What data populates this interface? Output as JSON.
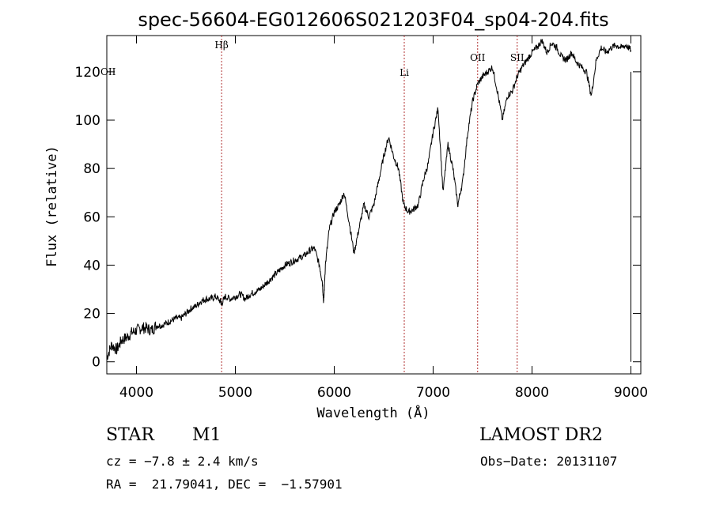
{
  "chart_data": {
    "type": "line",
    "title": "spec-56604-EG012606S021203F04_sp04-204.fits",
    "xlabel": "Wavelength (Å)",
    "ylabel": "Flux (relative)",
    "xlim": [
      3700,
      9100
    ],
    "ylim": [
      -5,
      135
    ],
    "x_ticks": [
      4000,
      5000,
      6000,
      7000,
      8000,
      9000
    ],
    "y_ticks": [
      0,
      20,
      40,
      60,
      80,
      100,
      120
    ],
    "grid": false,
    "series": [
      {
        "x": [
          3700,
          3750,
          3800,
          3850,
          3900,
          3950,
          4000,
          4050,
          4100,
          4150,
          4200,
          4250,
          4300,
          4350,
          4400,
          4450,
          4500,
          4550,
          4600,
          4650,
          4700,
          4750,
          4800,
          4850,
          4861,
          4900,
          4950,
          5000,
          5050,
          5100,
          5150,
          5200,
          5250,
          5300,
          5350,
          5400,
          5450,
          5500,
          5550,
          5600,
          5650,
          5700,
          5750,
          5800,
          5850,
          5880,
          5893,
          5910,
          5950,
          6000,
          6050,
          6100,
          6150,
          6200,
          6250,
          6300,
          6350,
          6400,
          6450,
          6500,
          6550,
          6600,
          6650,
          6700,
          6750,
          6800,
          6850,
          6900,
          6950,
          7000,
          7050,
          7100,
          7150,
          7200,
          7250,
          7300,
          7350,
          7400,
          7450,
          7500,
          7550,
          7600,
          7650,
          7700,
          7750,
          7800,
          7850,
          7900,
          7950,
          8000,
          8050,
          8100,
          8150,
          8200,
          8250,
          8300,
          8350,
          8400,
          8450,
          8500,
          8550,
          8600,
          8650,
          8700,
          8750,
          8800,
          8850,
          8900,
          8950,
          9000
        ],
        "y": [
          2,
          7,
          5,
          9,
          10,
          12,
          13,
          14,
          14,
          13,
          15,
          15,
          16,
          17,
          18,
          18,
          20,
          22,
          23,
          25,
          26,
          26,
          27,
          25,
          24,
          27,
          26,
          27,
          28,
          26,
          28,
          29,
          30,
          32,
          34,
          36,
          38,
          40,
          41,
          42,
          43,
          44,
          46,
          47,
          40,
          33,
          24,
          40,
          55,
          62,
          65,
          70,
          58,
          45,
          55,
          65,
          60,
          65,
          75,
          85,
          93,
          85,
          80,
          65,
          62,
          63,
          65,
          75,
          82,
          95,
          105,
          70,
          90,
          80,
          65,
          75,
          95,
          108,
          115,
          118,
          120,
          122,
          112,
          100,
          110,
          112,
          118,
          122,
          125,
          128,
          130,
          133,
          128,
          132,
          130,
          126,
          125,
          128,
          124,
          122,
          120,
          110,
          125,
          130,
          128,
          130,
          131,
          130,
          131,
          129
        ]
      }
    ],
    "lines": [
      {
        "label": "Hβ",
        "x": 4861
      },
      {
        "label": "Li",
        "x": 6708
      },
      {
        "label": "OII",
        "x": 7450
      },
      {
        "label": "SII",
        "x": 7850
      }
    ],
    "corner_label": "OII"
  },
  "info": {
    "object_class": "STAR",
    "subclass": "M1",
    "survey": "LAMOST DR2",
    "cz": "cz = −7.8 ± 2.4 km/s",
    "obs_date": "Obs−Date: 20131107",
    "coords": "RA =  21.79041, DEC =  −1.57901"
  }
}
